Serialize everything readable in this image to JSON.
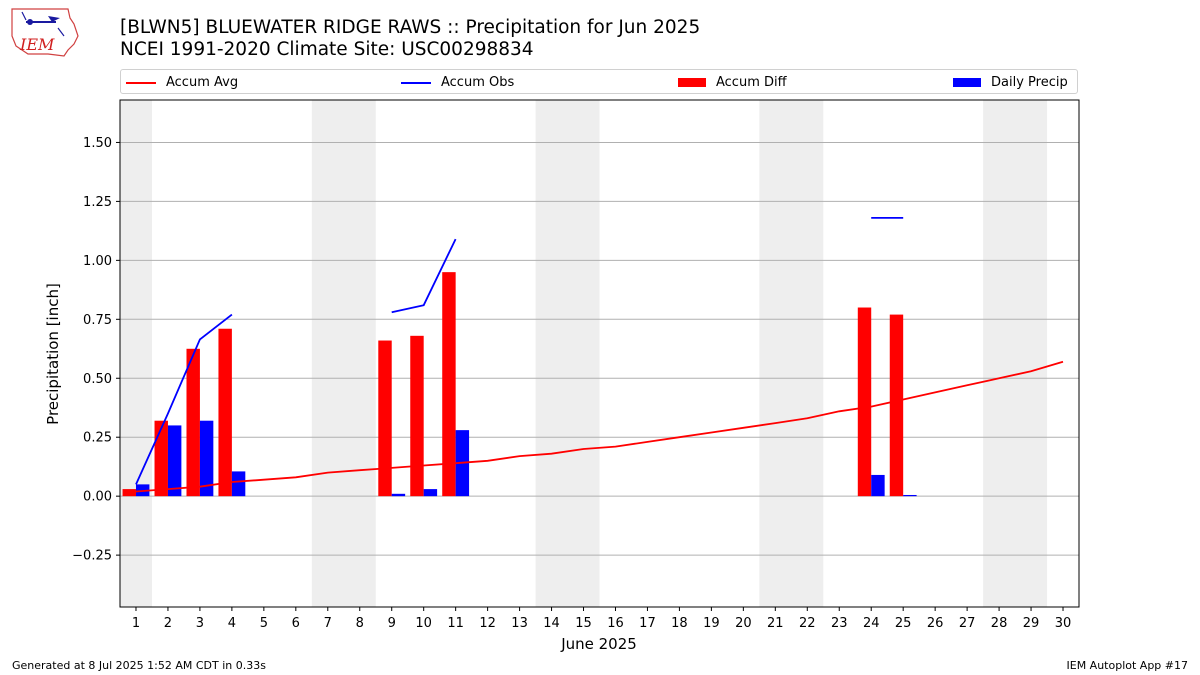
{
  "logo": {
    "text": "IEM"
  },
  "title": {
    "line1": "[BLWN5] BLUEWATER RIDGE RAWS :: Precipitation for Jun 2025",
    "line2": "NCEI 1991-2020 Climate Site: USC00298834"
  },
  "legend": [
    {
      "label": "Accum Avg",
      "kind": "line",
      "color": "#ff0000"
    },
    {
      "label": "Accum Obs",
      "kind": "line",
      "color": "#0000ff"
    },
    {
      "label": "Accum Diff",
      "kind": "patch",
      "color": "#ff0000"
    },
    {
      "label": "Daily Precip",
      "kind": "patch",
      "color": "#0000ff"
    }
  ],
  "footer": {
    "left": "Generated at 8 Jul 2025 1:52 AM CDT in 0.33s",
    "right": "IEM Autoplot App #17"
  },
  "chart_data": {
    "type": "bar",
    "xlabel": "June 2025",
    "ylabel": "Precipitation [inch]",
    "xlim": [
      0.5,
      30.5
    ],
    "ylim": [
      -0.47,
      1.68
    ],
    "x_ticks": [
      "1",
      "2",
      "3",
      "4",
      "5",
      "6",
      "7",
      "8",
      "9",
      "10",
      "11",
      "12",
      "13",
      "14",
      "15",
      "16",
      "17",
      "18",
      "19",
      "20",
      "21",
      "22",
      "23",
      "24",
      "25",
      "26",
      "27",
      "28",
      "29",
      "30"
    ],
    "y_ticks": [
      -0.25,
      0.0,
      0.25,
      0.5,
      0.75,
      1.0,
      1.25,
      1.5
    ],
    "y_tick_labels": [
      "−0.25",
      "0.00",
      "0.25",
      "0.50",
      "0.75",
      "1.00",
      "1.25",
      "1.50"
    ],
    "grid": "horizontal",
    "weekend_shading": [
      [
        0.5,
        1.5
      ],
      [
        6.5,
        8.5
      ],
      [
        13.5,
        15.5
      ],
      [
        20.5,
        22.5
      ],
      [
        27.5,
        29.5
      ]
    ],
    "accum_avg": {
      "name": "Accum Avg",
      "x": [
        1,
        2,
        3,
        4,
        5,
        6,
        7,
        8,
        9,
        10,
        11,
        12,
        13,
        14,
        15,
        16,
        17,
        18,
        19,
        20,
        21,
        22,
        23,
        24,
        25,
        26,
        27,
        28,
        29,
        30
      ],
      "values": [
        0.02,
        0.03,
        0.04,
        0.06,
        0.07,
        0.08,
        0.1,
        0.11,
        0.12,
        0.13,
        0.14,
        0.15,
        0.17,
        0.18,
        0.2,
        0.21,
        0.23,
        0.25,
        0.27,
        0.29,
        0.31,
        0.33,
        0.36,
        0.38,
        0.41,
        0.44,
        0.47,
        0.5,
        0.53,
        0.57
      ]
    },
    "accum_obs": {
      "name": "Accum Obs",
      "segments": [
        {
          "x": [
            1,
            2,
            3,
            4
          ],
          "values": [
            0.05,
            0.35,
            0.665,
            0.77
          ]
        },
        {
          "x": [
            9,
            10,
            11
          ],
          "values": [
            0.78,
            0.81,
            1.09
          ]
        },
        {
          "x": [
            24,
            25
          ],
          "values": [
            1.18,
            1.18
          ]
        }
      ]
    },
    "accum_diff": {
      "name": "Accum Diff",
      "x": [
        1,
        2,
        3,
        4,
        9,
        10,
        11,
        24,
        25
      ],
      "values": [
        0.03,
        0.32,
        0.625,
        0.71,
        0.66,
        0.68,
        0.95,
        0.8,
        0.77
      ]
    },
    "daily_precip": {
      "name": "Daily Precip",
      "x": [
        1,
        2,
        3,
        4,
        9,
        10,
        11,
        24,
        25
      ],
      "values": [
        0.05,
        0.3,
        0.32,
        0.105,
        0.01,
        0.03,
        0.28,
        0.09,
        0.005
      ]
    },
    "colors": {
      "avg": "#ff0000",
      "obs": "#0000ff",
      "diff": "#ff0000",
      "daily": "#0000ff",
      "weekend": "#eeeeee",
      "grid": "#b0b0b0"
    }
  }
}
